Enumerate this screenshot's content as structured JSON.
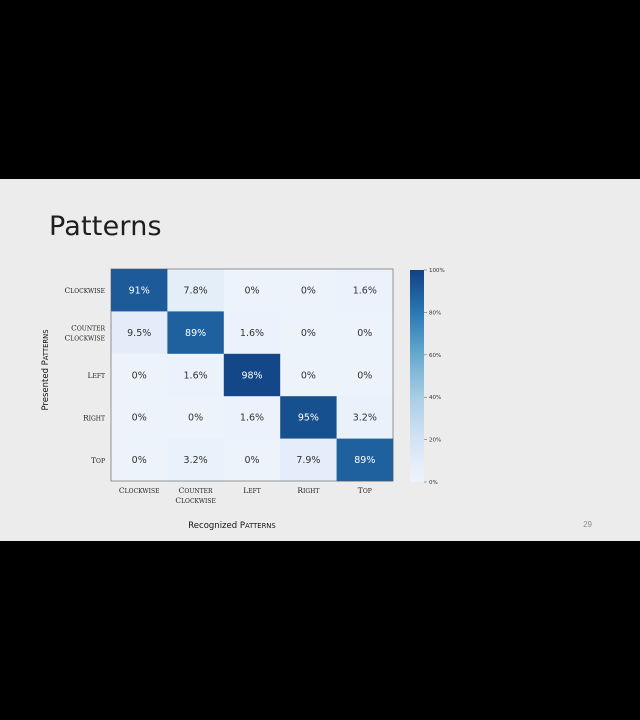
{
  "slide": {
    "title": "Patterns",
    "page_number": "29"
  },
  "chart_data": {
    "type": "heatmap",
    "xlabel": "Recognized Patterns",
    "ylabel": "Presented Patterns",
    "rows": [
      {
        "label": [
          "Clockwise"
        ]
      },
      {
        "label": [
          "Counter",
          "Clockwise"
        ]
      },
      {
        "label": [
          "Left"
        ]
      },
      {
        "label": [
          "Right"
        ]
      },
      {
        "label": [
          "Top"
        ]
      }
    ],
    "columns": [
      {
        "label": [
          "Clockwise"
        ]
      },
      {
        "label": [
          "Counter",
          "Clockwise"
        ]
      },
      {
        "label": [
          "Left"
        ]
      },
      {
        "label": [
          "Right"
        ]
      },
      {
        "label": [
          "Top"
        ]
      }
    ],
    "values": [
      [
        91,
        7.8,
        0,
        0,
        1.6
      ],
      [
        9.5,
        89,
        1.6,
        0,
        0
      ],
      [
        0,
        1.6,
        98,
        0,
        0
      ],
      [
        0,
        0,
        1.6,
        95,
        3.2
      ],
      [
        0,
        3.2,
        0,
        7.9,
        89
      ]
    ],
    "value_labels": [
      [
        "91%",
        "7.8%",
        "0%",
        "0%",
        "1.6%"
      ],
      [
        "9.5%",
        "89%",
        "1.6%",
        "0%",
        "0%"
      ],
      [
        "0%",
        "1.6%",
        "98%",
        "0%",
        "0%"
      ],
      [
        "0%",
        "0%",
        "1.6%",
        "95%",
        "3.2%"
      ],
      [
        "0%",
        "3.2%",
        "0%",
        "7.9%",
        "89%"
      ]
    ],
    "colorbar": {
      "range": [
        0,
        100
      ],
      "ticks": [
        0,
        20,
        40,
        60,
        80,
        100
      ],
      "tick_labels": [
        "0%",
        "20%",
        "40%",
        "60%",
        "80%",
        "100%"
      ]
    },
    "colormap": "Blues"
  }
}
